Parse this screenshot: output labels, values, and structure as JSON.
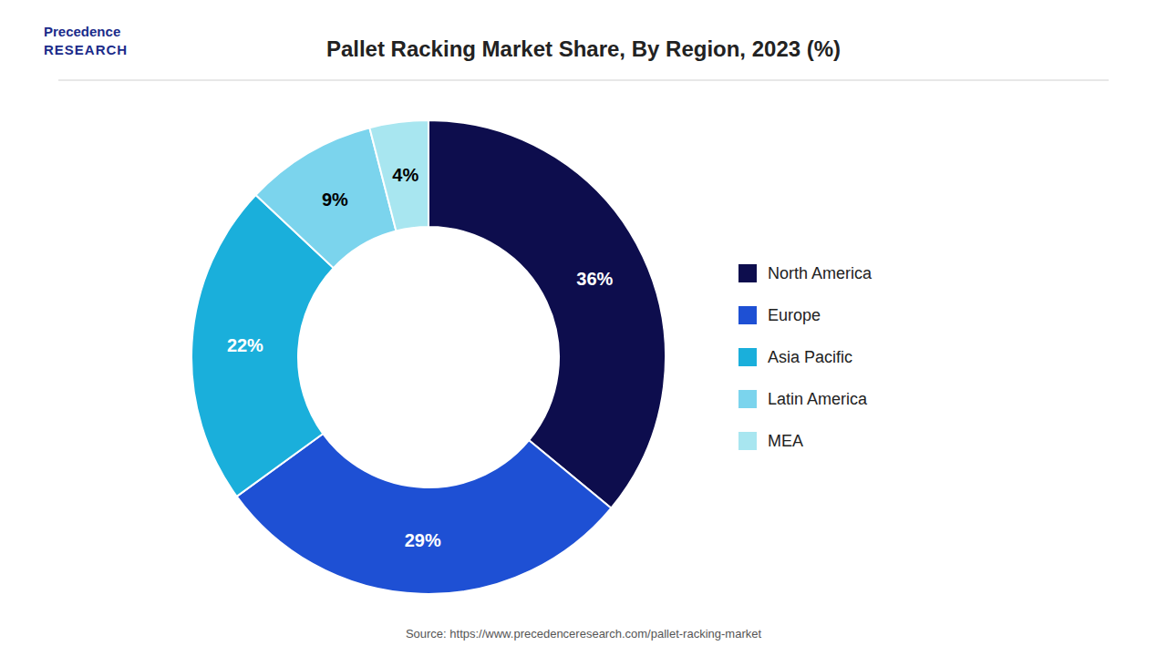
{
  "chart_data": {
    "type": "pie",
    "title": "Pallet Racking Market Share, By Region, 2023 (%)",
    "categories": [
      "North America",
      "Europe",
      "Asia Pacific",
      "Latin America",
      "MEA"
    ],
    "values": [
      36,
      29,
      22,
      9,
      4
    ],
    "value_labels": [
      "36%",
      "29%",
      "22%",
      "9%",
      "4%"
    ],
    "colors": [
      "#0d0d4d",
      "#1e50d4",
      "#1aafdb",
      "#7bd4ed",
      "#a8e6f0"
    ],
    "data_labels": true,
    "legend": "right",
    "annotations": [
      "Precedence",
      "RESEARCH",
      "Source: https://www.precedenceresearch.com/pallet-racking-market"
    ]
  }
}
